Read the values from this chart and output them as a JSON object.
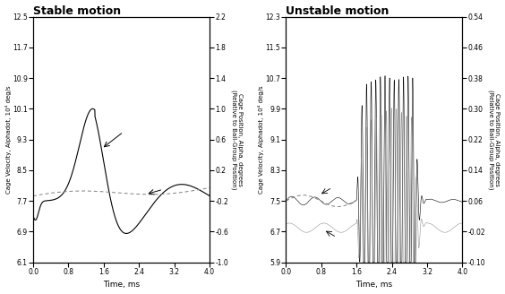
{
  "stable": {
    "title": "Stable motion",
    "ylim_left": [
      6.1,
      12.5
    ],
    "ylim_right": [
      -1.0,
      2.2
    ],
    "yticks_left": [
      6.1,
      6.9,
      7.7,
      8.5,
      9.3,
      10.1,
      10.9,
      11.7,
      12.5
    ],
    "yticks_right": [
      -1.0,
      -0.6,
      -0.2,
      0.2,
      0.6,
      1.0,
      1.4,
      1.8,
      2.2
    ],
    "xlim": [
      0,
      4.0
    ],
    "xticks": [
      0,
      0.8,
      1.6,
      2.4,
      3.2,
      4.0
    ],
    "xlabel": "Time, ms",
    "ylabel_left": "Cage Velocity, Alphadot, 10⁴ deg/s",
    "ylabel_right": "Cage Position, Alpha, degrees\n(Relative to Ball-Group Position)"
  },
  "unstable": {
    "title": "Unstable motion",
    "ylim_left": [
      5.9,
      12.3
    ],
    "ylim_right": [
      -0.1,
      0.54
    ],
    "yticks_left": [
      5.9,
      6.7,
      7.5,
      8.3,
      9.1,
      9.9,
      10.7,
      11.5,
      12.3
    ],
    "yticks_right": [
      -0.1,
      -0.02,
      0.06,
      0.14,
      0.22,
      0.3,
      0.38,
      0.46,
      0.54
    ],
    "xlim": [
      0,
      4.0
    ],
    "xticks": [
      0,
      0.8,
      1.6,
      2.4,
      3.2,
      4.0
    ],
    "xlabel": "Time, ms",
    "ylabel_left": "Cage Velocity, Alphadot, 10⁴ deg/s",
    "ylabel_right": "Cage Position, Alpha, degrees\n(Relative to Ball-Group Position)"
  }
}
